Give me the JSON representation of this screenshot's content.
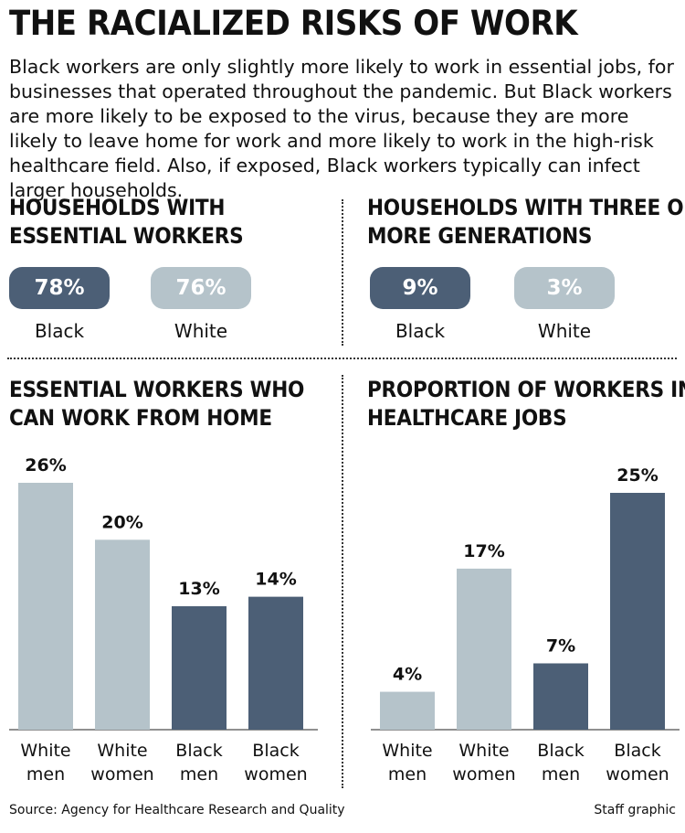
{
  "title": "THE RACIALIZED RISKS OF WORK",
  "intro": "Black workers are only slightly more likely to work in essential jobs, for businesses that operated throughout the pandemic. But Black workers are more likely to be exposed to the virus, because they are more likely to leave home for work and more likely to work in the high-risk healthcare field. Also, if exposed, Black workers typically can infect larger households.",
  "colors": {
    "black_group": "#4c5f76",
    "white_group": "#b5c3ca"
  },
  "panels": {
    "essential": {
      "title_line1": "HOUSEHOLDS WITH",
      "title_line2": "ESSENTIAL WORKERS",
      "black_value": "78%",
      "black_label": "Black",
      "white_value": "76%",
      "white_label": "White"
    },
    "generations": {
      "title_line1": "HOUSEHOLDS WITH THREE OR",
      "title_line2": "MORE GENERATIONS",
      "black_value": "9%",
      "black_label": "Black",
      "white_value": "3%",
      "white_label": "White"
    },
    "wfh": {
      "title_line1": "ESSENTIAL WORKERS WHO",
      "title_line2": "CAN WORK FROM HOME"
    },
    "healthcare": {
      "title_line1": "PROPORTION OF WORKERS IN",
      "title_line2": "HEALTHCARE JOBS"
    }
  },
  "chart_data": [
    {
      "type": "bar",
      "title": "ESSENTIAL WORKERS WHO CAN WORK FROM HOME",
      "categories": [
        [
          "White",
          "men"
        ],
        [
          "White",
          "women"
        ],
        [
          "Black",
          "men"
        ],
        [
          "Black",
          "women"
        ]
      ],
      "values": [
        26,
        20,
        13,
        14
      ],
      "value_labels": [
        "26%",
        "20%",
        "13%",
        "14%"
      ],
      "groups": [
        "white",
        "white",
        "black",
        "black"
      ],
      "ylim": [
        0,
        26
      ],
      "grid": false
    },
    {
      "type": "bar",
      "title": "PROPORTION OF WORKERS IN HEALTHCARE JOBS",
      "categories": [
        [
          "White",
          "men"
        ],
        [
          "White",
          "women"
        ],
        [
          "Black",
          "men"
        ],
        [
          "Black",
          "women"
        ]
      ],
      "values": [
        4,
        17,
        7,
        25
      ],
      "value_labels": [
        "4%",
        "17%",
        "7%",
        "25%"
      ],
      "groups": [
        "white",
        "white",
        "black",
        "black"
      ],
      "ylim": [
        0,
        25
      ],
      "grid": false
    }
  ],
  "footer": {
    "source": "Source: Agency for Healthcare Research and Quality",
    "credit": "Staff graphic"
  }
}
